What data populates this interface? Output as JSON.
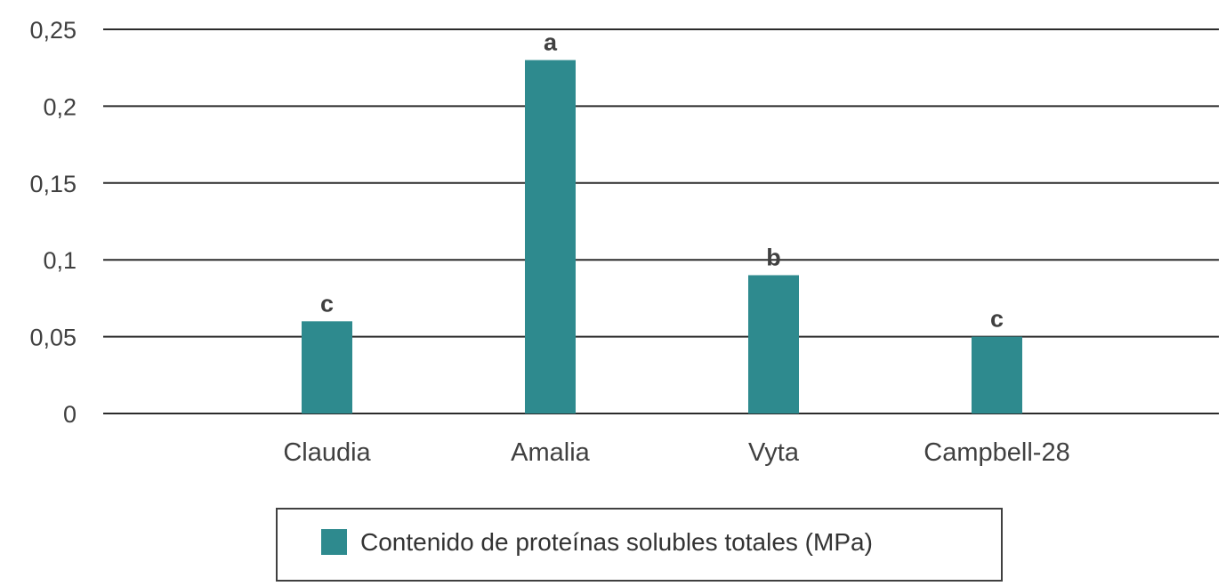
{
  "chart_data": {
    "type": "bar",
    "categories": [
      "Claudia",
      "Amalia",
      "Vyta",
      "Campbell-28"
    ],
    "series": [
      {
        "name": "Contenido de proteínas solubles totales (MPa)",
        "values": [
          0.06,
          0.23,
          0.09,
          0.05
        ],
        "data_labels": [
          "c",
          "a",
          "b",
          "c"
        ],
        "color": "#2e8a8e"
      }
    ],
    "y_ticks": [
      "0",
      "0,05",
      "0,1",
      "0,15",
      "0,2",
      "0,25"
    ],
    "ylim": [
      0,
      0.25
    ],
    "grid": true,
    "legend_position": "bottom",
    "title": "",
    "xlabel": "",
    "ylabel": ""
  }
}
